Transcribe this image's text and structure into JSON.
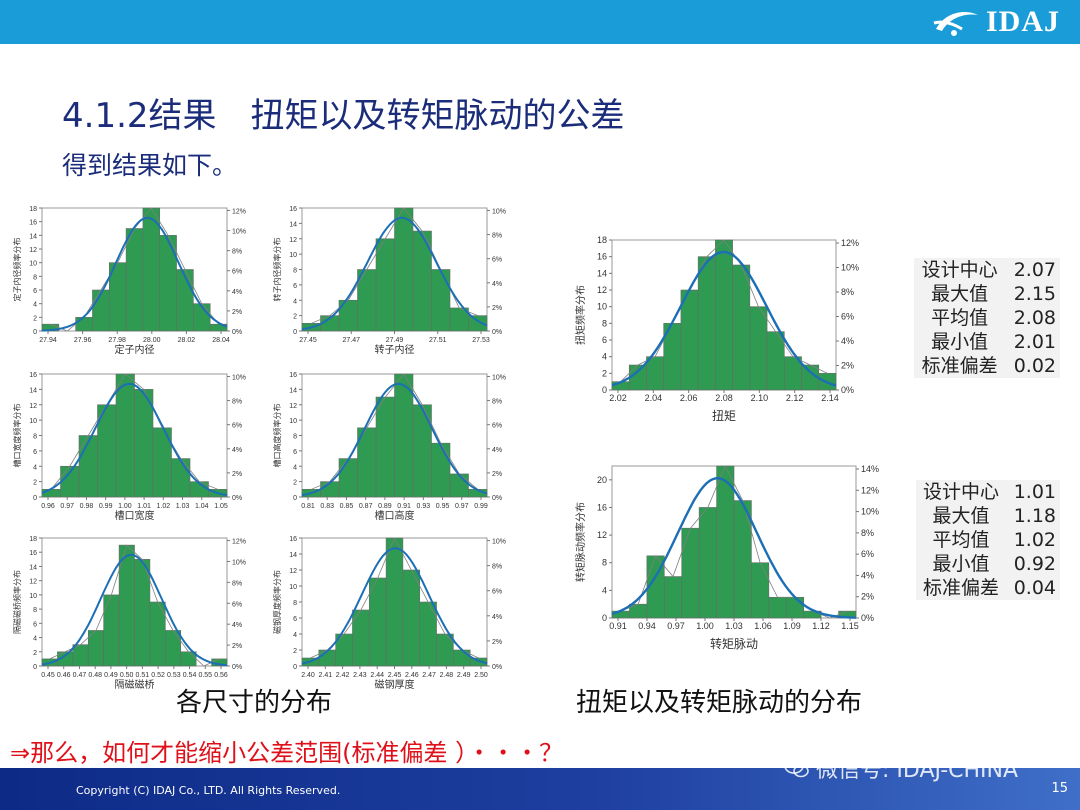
{
  "header": {
    "logo_text": "IDAJ"
  },
  "title": "4.1.2结果　扭矩以及转矩脉动的公差",
  "subtitle": "得到结果如下。",
  "charts": [
    {
      "name": "chart-stator-inner-diameter",
      "xlabel": "定子内径",
      "ylabel": "定子内径频率分布",
      "xticks": [
        "27.94",
        "27.96",
        "27.98",
        "28.00",
        "28.02",
        "28.04"
      ],
      "yticks": [
        "0",
        "2",
        "4",
        "6",
        "8",
        "10",
        "12",
        "14",
        "16",
        "18"
      ],
      "rticks": [
        "0%",
        "2%",
        "4%",
        "6%",
        "8%",
        "10%",
        "12%"
      ],
      "ymax": 18
    },
    {
      "name": "chart-rotor-inner-diameter",
      "xlabel": "转子内径",
      "ylabel": "转子内径频率分布",
      "xticks": [
        "27.45",
        "27.47",
        "27.49",
        "27.51",
        "27.53"
      ],
      "yticks": [
        "0",
        "2",
        "4",
        "6",
        "8",
        "10",
        "12",
        "14",
        "16"
      ],
      "rticks": [
        "0%",
        "2%",
        "4%",
        "6%",
        "8%",
        "10%"
      ],
      "ymax": 16
    },
    {
      "name": "chart-slot-width",
      "xlabel": "槽口宽度",
      "ylabel": "槽口宽度频率分布",
      "xticks": [
        "0.96",
        "0.97",
        "0.98",
        "0.99",
        "1.00",
        "1.01",
        "1.02",
        "1.03",
        "1.04",
        "1.05"
      ],
      "yticks": [
        "0",
        "2",
        "4",
        "6",
        "8",
        "10",
        "12",
        "14",
        "16"
      ],
      "rticks": [
        "0%",
        "2%",
        "4%",
        "6%",
        "8%",
        "10%"
      ],
      "ymax": 16
    },
    {
      "name": "chart-slot-height",
      "xlabel": "槽口高度",
      "ylabel": "槽口高度频率分布",
      "xticks": [
        "0.81",
        "0.83",
        "0.85",
        "0.87",
        "0.89",
        "0.91",
        "0.93",
        "0.95",
        "0.97",
        "0.99"
      ],
      "yticks": [
        "0",
        "2",
        "4",
        "6",
        "8",
        "10",
        "12",
        "14",
        "16"
      ],
      "rticks": [
        "0%",
        "2%",
        "4%",
        "6%",
        "8%",
        "10%"
      ],
      "ymax": 16
    },
    {
      "name": "chart-bridge",
      "xlabel": "隔磁磁桥",
      "ylabel": "隔磁磁桥频率分布",
      "xticks": [
        "0.45",
        "0.46",
        "0.47",
        "0.48",
        "0.49",
        "0.50",
        "0.51",
        "0.52",
        "0.53",
        "0.54",
        "0.55",
        "0.56"
      ],
      "yticks": [
        "0",
        "2",
        "4",
        "6",
        "8",
        "10",
        "12",
        "14",
        "16",
        "18"
      ],
      "rticks": [
        "0%",
        "2%",
        "4%",
        "6%",
        "8%",
        "10%",
        "12%"
      ],
      "ymax": 18
    },
    {
      "name": "chart-magnet-thickness",
      "xlabel": "磁钢厚度",
      "ylabel": "磁钢厚度频率分布",
      "xticks": [
        "2.40",
        "2.41",
        "2.42",
        "2.43",
        "2.44",
        "2.45",
        "2.46",
        "2.47",
        "2.48",
        "2.49",
        "2.50"
      ],
      "yticks": [
        "0",
        "2",
        "4",
        "6",
        "8",
        "10",
        "12",
        "14",
        "16"
      ],
      "rticks": [
        "0%",
        "2%",
        "4%",
        "6%",
        "8%",
        "10%"
      ],
      "ymax": 16
    },
    {
      "name": "chart-torque",
      "xlabel": "扭矩",
      "ylabel": "扭矩频率分布",
      "xticks": [
        "2.02",
        "2.04",
        "2.06",
        "2.08",
        "2.10",
        "2.12",
        "2.14"
      ],
      "yticks": [
        "0",
        "2",
        "4",
        "6",
        "8",
        "10",
        "12",
        "14",
        "16",
        "18"
      ],
      "rticks": [
        "0%",
        "2%",
        "4%",
        "6%",
        "8%",
        "10%",
        "12%"
      ],
      "ymax": 18
    },
    {
      "name": "chart-torque-ripple",
      "xlabel": "转矩脉动",
      "ylabel": "转矩脉动频率分布",
      "xticks": [
        "0.91",
        "0.94",
        "0.97",
        "1.00",
        "1.03",
        "1.06",
        "1.09",
        "1.12",
        "1.15"
      ],
      "yticks": [
        "0",
        "4",
        "8",
        "12",
        "16",
        "20"
      ],
      "rticks": [
        "0%",
        "2%",
        "4%",
        "6%",
        "8%",
        "10%",
        "12%",
        "14%"
      ],
      "ymax": 22
    }
  ],
  "captions": {
    "left": "各尺寸的分布",
    "right": "扭矩以及转矩脉动的分布"
  },
  "stats_torque": [
    {
      "k": "设计中心",
      "v": "2.07"
    },
    {
      "k": "最大值",
      "v": "2.15"
    },
    {
      "k": "平均值",
      "v": "2.08"
    },
    {
      "k": "最小值",
      "v": "2.01"
    },
    {
      "k": "标准偏差",
      "v": "0.02"
    }
  ],
  "stats_ripple": [
    {
      "k": "设计中心",
      "v": "1.01"
    },
    {
      "k": "最大值",
      "v": "1.18"
    },
    {
      "k": "平均值",
      "v": "1.02"
    },
    {
      "k": "最小值",
      "v": "0.92"
    },
    {
      "k": "标准偏差",
      "v": "0.04"
    }
  ],
  "question": "⇒那么，如何才能缩小公差范围(标准偏差 ）・・・？",
  "footer": {
    "copyright": "Copyright (C)  IDAJ Co., LTD. All Rights Reserved.",
    "page": "15"
  },
  "watermark": "微信号: IDAJ-CHINA",
  "chart_data": [
    {
      "type": "bar",
      "title": "",
      "xlabel": "定子内径",
      "ylabel": "定子内径频率分布",
      "x": [
        "27.94",
        "27.95",
        "27.96",
        "27.97",
        "27.98",
        "27.99",
        "28.00",
        "28.01",
        "28.02",
        "28.03",
        "28.04"
      ],
      "series": [
        {
          "values": [
            1,
            0,
            2,
            6,
            10,
            15,
            18,
            14,
            9,
            4,
            1
          ]
        }
      ],
      "ylim": [
        0,
        18
      ]
    },
    {
      "type": "bar",
      "title": "",
      "xlabel": "转子内径",
      "ylabel": "转子内径频率分布",
      "x": [
        "27.45",
        "27.46",
        "27.47",
        "27.48",
        "27.49",
        "27.50",
        "27.51",
        "27.52",
        "27.53",
        "27.54"
      ],
      "series": [
        {
          "values": [
            1,
            2,
            4,
            8,
            12,
            16,
            13,
            8,
            3,
            2
          ]
        }
      ],
      "ylim": [
        0,
        16
      ]
    },
    {
      "type": "bar",
      "title": "",
      "xlabel": "槽口宽度",
      "ylabel": "槽口宽度频率分布",
      "x": [
        "0.96",
        "0.97",
        "0.98",
        "0.99",
        "1.00",
        "1.01",
        "1.02",
        "1.03",
        "1.04",
        "1.05"
      ],
      "series": [
        {
          "values": [
            1,
            4,
            8,
            12,
            16,
            14,
            9,
            5,
            2,
            1
          ]
        }
      ],
      "ylim": [
        0,
        16
      ]
    },
    {
      "type": "bar",
      "title": "",
      "xlabel": "槽口高度",
      "ylabel": "槽口高度频率分布",
      "x": [
        "0.81",
        "0.83",
        "0.85",
        "0.87",
        "0.89",
        "0.91",
        "0.93",
        "0.95",
        "0.97",
        "0.99"
      ],
      "series": [
        {
          "values": [
            1,
            2,
            5,
            9,
            13,
            16,
            12,
            7,
            3,
            1
          ]
        }
      ],
      "ylim": [
        0,
        16
      ]
    },
    {
      "type": "bar",
      "title": "",
      "xlabel": "隔磁磁桥",
      "ylabel": "隔磁磁桥频率分布",
      "x": [
        "0.45",
        "0.46",
        "0.47",
        "0.48",
        "0.49",
        "0.50",
        "0.51",
        "0.52",
        "0.53",
        "0.54",
        "0.55",
        "0.56"
      ],
      "series": [
        {
          "values": [
            1,
            2,
            3,
            5,
            10,
            17,
            15,
            9,
            5,
            2,
            0,
            1
          ]
        }
      ],
      "ylim": [
        0,
        18
      ]
    },
    {
      "type": "bar",
      "title": "",
      "xlabel": "磁钢厚度",
      "ylabel": "磁钢厚度频率分布",
      "x": [
        "2.40",
        "2.41",
        "2.42",
        "2.43",
        "2.44",
        "2.45",
        "2.46",
        "2.47",
        "2.48",
        "2.49",
        "2.50"
      ],
      "series": [
        {
          "values": [
            1,
            2,
            4,
            7,
            11,
            16,
            12,
            8,
            4,
            2,
            1
          ]
        }
      ],
      "ylim": [
        0,
        16
      ]
    },
    {
      "type": "bar",
      "title": "",
      "xlabel": "扭矩",
      "ylabel": "扭矩频率分布",
      "x": [
        "2.02",
        "2.03",
        "2.04",
        "2.05",
        "2.06",
        "2.07",
        "2.08",
        "2.09",
        "2.10",
        "2.11",
        "2.12",
        "2.13",
        "2.14"
      ],
      "series": [
        {
          "values": [
            1,
            3,
            4,
            8,
            12,
            16,
            18,
            15,
            10,
            7,
            4,
            3,
            2
          ]
        }
      ],
      "ylim": [
        0,
        18
      ]
    },
    {
      "type": "bar",
      "title": "",
      "xlabel": "转矩脉动",
      "ylabel": "转矩脉动频率分布",
      "x": [
        "0.91",
        "0.93",
        "0.95",
        "0.97",
        "0.99",
        "1.01",
        "1.03",
        "1.05",
        "1.07",
        "1.09",
        "1.11",
        "1.13",
        "1.15",
        "1.17"
      ],
      "series": [
        {
          "values": [
            1,
            2,
            9,
            6,
            13,
            16,
            22,
            17,
            8,
            3,
            3,
            1,
            0,
            1
          ]
        }
      ],
      "ylim": [
        0,
        22
      ]
    }
  ]
}
